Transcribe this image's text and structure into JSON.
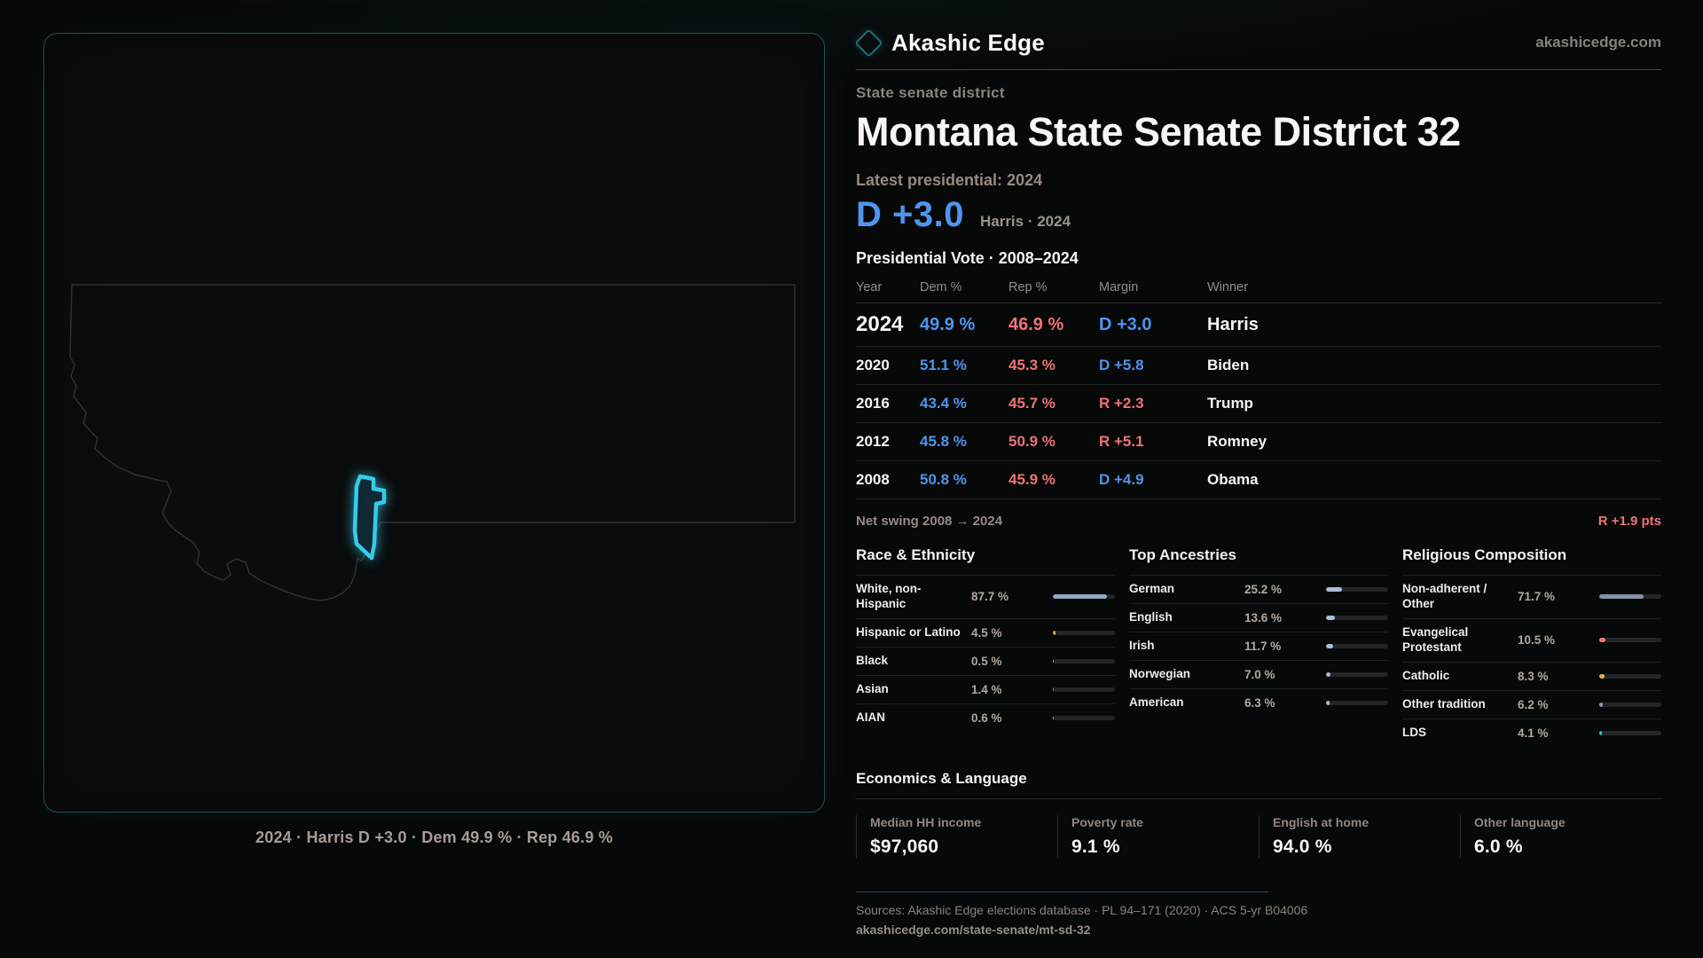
{
  "brand": {
    "name": "Akashic Edge",
    "domain": "akashicedge.com",
    "accent": "#35cbeb"
  },
  "page": {
    "kicker": "State senate district",
    "title": "Montana State Senate District 32",
    "latest_label": "Latest presidential: 2024",
    "headline_margin": "D +3.0",
    "headline_party": "d",
    "headline_note": "Harris · 2024"
  },
  "map": {
    "caption": "2024 · Harris D +3.0 · Dem 49.9 % · Rep 46.9 %",
    "district_color": "#35cbeb"
  },
  "table": {
    "title": "Presidential Vote · 2008–2024",
    "headers": {
      "year": "Year",
      "dem": "Dem %",
      "rep": "Rep %",
      "margin": "Margin",
      "winner": "Winner"
    },
    "rows": [
      {
        "year": "2024",
        "dem": "49.9 %",
        "rep": "46.9 %",
        "margin": "D +3.0",
        "margin_party": "d",
        "winner": "Harris"
      },
      {
        "year": "2020",
        "dem": "51.1 %",
        "rep": "45.3 %",
        "margin": "D +5.8",
        "margin_party": "d",
        "winner": "Biden"
      },
      {
        "year": "2016",
        "dem": "43.4 %",
        "rep": "45.7 %",
        "margin": "R +2.3",
        "margin_party": "r",
        "winner": "Trump"
      },
      {
        "year": "2012",
        "dem": "45.8 %",
        "rep": "50.9 %",
        "margin": "R +5.1",
        "margin_party": "r",
        "winner": "Romney"
      },
      {
        "year": "2008",
        "dem": "50.8 %",
        "rep": "45.9 %",
        "margin": "D +4.9",
        "margin_party": "d",
        "winner": "Obama"
      }
    ]
  },
  "net_swing": {
    "label": "Net swing 2008 → 2024",
    "value": "R +1.9 pts",
    "party": "r"
  },
  "race": {
    "title": "Race & Ethnicity",
    "rows": [
      {
        "label": "White, non-Hispanic",
        "value": "87.7 %",
        "pct": 87.7,
        "color": "#8ea9c7"
      },
      {
        "label": "Hispanic or Latino",
        "value": "4.5 %",
        "pct": 4.5,
        "color": "#eca23f"
      },
      {
        "label": "Black",
        "value": "0.5 %",
        "pct": 0.5,
        "color": "#8ea9c7"
      },
      {
        "label": "Asian",
        "value": "1.4 %",
        "pct": 1.4,
        "color": "#35d4b5"
      },
      {
        "label": "AIAN",
        "value": "0.6 %",
        "pct": 0.6,
        "color": "#8ea9c7"
      }
    ]
  },
  "ancestry": {
    "title": "Top Ancestries",
    "rows": [
      {
        "label": "German",
        "value": "25.2 %",
        "pct": 25.2,
        "color": "#a9bed6"
      },
      {
        "label": "English",
        "value": "13.6 %",
        "pct": 13.6,
        "color": "#a9bed6"
      },
      {
        "label": "Irish",
        "value": "11.7 %",
        "pct": 11.7,
        "color": "#a9bed6"
      },
      {
        "label": "Norwegian",
        "value": "7.0 %",
        "pct": 7.0,
        "color": "#a9bed6"
      },
      {
        "label": "American",
        "value": "6.3 %",
        "pct": 6.3,
        "color": "#a9bed6"
      }
    ]
  },
  "religion": {
    "title": "Religious Composition",
    "rows": [
      {
        "label": "Non-adherent / Other",
        "value": "71.7 %",
        "pct": 71.7,
        "color": "#8494a8"
      },
      {
        "label": "Evangelical Protestant",
        "value": "10.5 %",
        "pct": 10.5,
        "color": "#e87c7c"
      },
      {
        "label": "Catholic",
        "value": "8.3 %",
        "pct": 8.3,
        "color": "#e5b34a"
      },
      {
        "label": "Other tradition",
        "value": "6.2 %",
        "pct": 6.2,
        "color": "#8a9ab4"
      },
      {
        "label": "LDS",
        "value": "4.1 %",
        "pct": 4.1,
        "color": "#2fc8c0"
      }
    ]
  },
  "economics": {
    "title": "Economics & Language",
    "stats": [
      {
        "label": "Median HH income",
        "value": "$97,060"
      },
      {
        "label": "Poverty rate",
        "value": "9.1 %"
      },
      {
        "label": "English at home",
        "value": "94.0 %"
      },
      {
        "label": "Other language",
        "value": "6.0 %"
      }
    ]
  },
  "footer": {
    "sources": "Sources: Akashic Edge elections database · PL 94–171 (2020) · ACS 5-yr B04006",
    "url": "akashicedge.com/state-senate/mt-sd-32"
  }
}
